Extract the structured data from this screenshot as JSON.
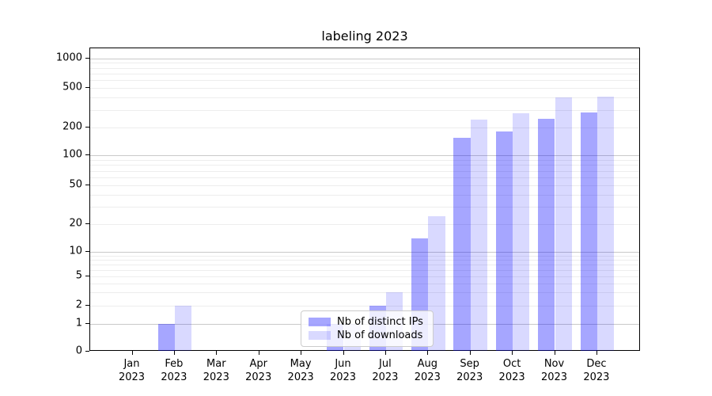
{
  "title": "labeling 2023",
  "colors": {
    "bar_distinct_ips": "rgba(0,0,255,0.35)",
    "bar_downloads": "rgba(0,0,255,0.15)",
    "grid_minor": "#ededed",
    "grid_major": "#c9c9c9",
    "axis": "#000000",
    "legend_border": "#cccccc"
  },
  "legend": {
    "items": [
      {
        "label": "Nb of distinct IPs"
      },
      {
        "label": "Nb of downloads"
      }
    ]
  },
  "chart_data": {
    "type": "bar",
    "title": "labeling 2023",
    "categories": [
      "Jan 2023",
      "Feb 2023",
      "Mar 2023",
      "Apr 2023",
      "May 2023",
      "Jun 2023",
      "Jul 2023",
      "Aug 2023",
      "Sep 2023",
      "Oct 2023",
      "Nov 2023",
      "Dec 2023"
    ],
    "series": [
      {
        "name": "Nb of distinct IPs",
        "values": [
          0,
          1,
          0,
          0,
          0,
          1,
          2,
          14,
          155,
          180,
          245,
          285
        ]
      },
      {
        "name": "Nb of downloads",
        "values": [
          0,
          2,
          0,
          0,
          0,
          1,
          3,
          24,
          240,
          280,
          400,
          410
        ]
      }
    ],
    "xlabel": "",
    "ylabel": "",
    "yscale": "symlog",
    "yticks": [
      0,
      1,
      2,
      5,
      10,
      20,
      50,
      100,
      200,
      500,
      1000
    ],
    "ylim": [
      0,
      1150
    ],
    "grid": "both-horizontal",
    "legend_position": "inside-lower-center"
  }
}
